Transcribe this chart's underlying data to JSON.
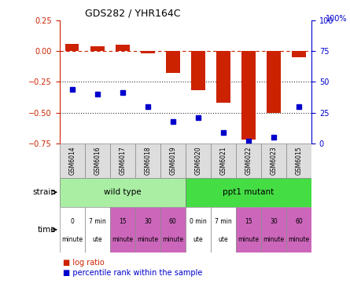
{
  "title": "GDS282 / YHR164C",
  "samples": [
    "GSM6014",
    "GSM6016",
    "GSM6017",
    "GSM6018",
    "GSM6019",
    "GSM6020",
    "GSM6021",
    "GSM6022",
    "GSM6023",
    "GSM6015"
  ],
  "log_ratio": [
    0.06,
    0.04,
    0.05,
    -0.02,
    -0.18,
    -0.32,
    -0.42,
    -0.72,
    -0.5,
    -0.05
  ],
  "percentile_rank": [
    44,
    40,
    41,
    30,
    18,
    21,
    9,
    2,
    5,
    30
  ],
  "ylim_left": [
    -0.75,
    0.25
  ],
  "ylim_right": [
    0,
    100
  ],
  "yticks_left": [
    -0.75,
    -0.5,
    -0.25,
    0,
    0.25
  ],
  "yticks_right": [
    0,
    25,
    50,
    75,
    100
  ],
  "bar_color": "#cc2200",
  "dot_color": "#0000cc",
  "dashed_color": "#cc2200",
  "dotted_color": "#333333",
  "strain_labels": [
    "wild type",
    "ppt1 mutant"
  ],
  "strain_colors": [
    "#aaeea4",
    "#44dd44"
  ],
  "time_labels": [
    "0\nminute",
    "7 min\nute",
    "15\nminute",
    "30\nminute",
    "60\nminute",
    "0 min\nute",
    "7 min\nute",
    "15\nminute",
    "30\nminute",
    "60\nminute"
  ],
  "time_colors": [
    "white",
    "white",
    "#cc66bb",
    "#cc66bb",
    "#cc66bb",
    "white",
    "white",
    "#cc66bb",
    "#cc66bb",
    "#cc66bb"
  ],
  "bg_color": "white",
  "tick_color_left": "#cc2200",
  "tick_color_right": "#0000cc",
  "gsm_box_color": "#dddddd",
  "gsm_box_edge": "#888888"
}
